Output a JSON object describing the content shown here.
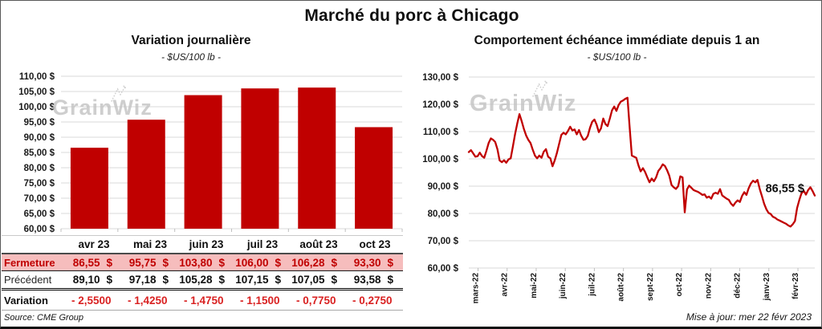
{
  "header": {
    "title": "Marché du porc à Chicago",
    "updated": "Mise à jour: mer 22 févr 2023"
  },
  "watermark": {
    "brand": "GrainWiz"
  },
  "table": {
    "columns": [
      "avr 23",
      "mai 23",
      "juin 23",
      "juil 23",
      "août 23",
      "oct 23"
    ],
    "rows": [
      {
        "id": "fermeture",
        "label": "Fermeture",
        "unit": "$",
        "values": [
          "86,55",
          "95,75",
          "103,80",
          "106,00",
          "106,28",
          "93,30"
        ]
      },
      {
        "id": "precedent",
        "label": "Précédent",
        "unit": "$",
        "values": [
          "89,10",
          "97,18",
          "105,28",
          "107,15",
          "107,05",
          "93,58"
        ]
      },
      {
        "id": "variation",
        "label": "Variation",
        "unit": "",
        "values": [
          "- 2,5500",
          "- 1,4250",
          "- 1,4750",
          "- 1,1500",
          "- 0,7750",
          "- 0,2750"
        ]
      }
    ],
    "source": "Source: CME Group"
  },
  "chart_data": [
    {
      "type": "bar",
      "title": "Variation journalière",
      "subtitle": "- $US/100 lb -",
      "categories": [
        "avr 23",
        "mai 23",
        "juin 23",
        "juil 23",
        "août 23",
        "oct 23"
      ],
      "values": [
        86.55,
        95.75,
        103.8,
        106.0,
        106.28,
        93.3
      ],
      "ylim": [
        60,
        110
      ],
      "ytick_step": 5,
      "ytick_labels": [
        "110,00 $",
        "105,00 $",
        "100,00 $",
        "95,00 $",
        "90,00 $",
        "85,00 $",
        "80,00 $",
        "75,00 $",
        "70,00 $",
        "65,00 $",
        "60,00 $"
      ],
      "bar_color": "#c00000",
      "grid": true,
      "legend": "none"
    },
    {
      "type": "line",
      "title": "Comportement échéance immédiate depuis 1 an",
      "subtitle": "- $US/100 lb -",
      "x_labels": [
        "mars-22",
        "avr-22",
        "mai-22",
        "juin-22",
        "juil-22",
        "août-22",
        "sept-22",
        "oct-22",
        "nov-22",
        "déc-22",
        "janv-23",
        "févr-23"
      ],
      "ylim": [
        60,
        130
      ],
      "ytick_step": 10,
      "ytick_labels": [
        "130,00 $",
        "120,00 $",
        "110,00 $",
        "100,00 $",
        "90,00 $",
        "80,00 $",
        "70,00 $",
        "60,00 $"
      ],
      "line_color": "#c00000",
      "last_value_label": "86,55 $",
      "last_value": 86.55,
      "grid": true,
      "legend": "none",
      "values": [
        102.5,
        103.2,
        102.0,
        100.8,
        101.0,
        102.3,
        101.0,
        100.4,
        103.0,
        105.8,
        107.5,
        107.0,
        106.2,
        103.5,
        99.4,
        98.8,
        99.5,
        98.6,
        99.8,
        100.2,
        104.5,
        109.0,
        113.0,
        116.4,
        113.8,
        111.0,
        108.6,
        107.0,
        105.8,
        103.4,
        101.2,
        100.2,
        101.2,
        100.4,
        102.6,
        103.6,
        100.8,
        100.2,
        97.3,
        99.5,
        102.2,
        105.6,
        108.8,
        109.6,
        109.0,
        110.2,
        111.8,
        110.4,
        110.8,
        109.0,
        110.6,
        108.5,
        107.0,
        107.2,
        108.4,
        111.4,
        113.6,
        114.4,
        112.6,
        109.8,
        111.2,
        114.8,
        112.8,
        112.0,
        114.8,
        117.8,
        119.2,
        117.6,
        119.8,
        121.0,
        121.4,
        122.0,
        122.4,
        111.5,
        101.2,
        100.8,
        100.4,
        97.6,
        95.4,
        96.6,
        95.2,
        93.2,
        91.4,
        92.8,
        91.8,
        93.2,
        95.6,
        96.6,
        98.0,
        97.4,
        95.8,
        93.8,
        90.4,
        89.6,
        89.0,
        90.0,
        93.6,
        93.2,
        80.4,
        88.8,
        90.2,
        89.4,
        88.6,
        88.2,
        87.9,
        87.4,
        86.8,
        87.0,
        85.8,
        86.2,
        85.4,
        87.2,
        87.6,
        87.2,
        88.9,
        86.6,
        86.0,
        85.4,
        85.0,
        83.6,
        82.8,
        84.0,
        84.8,
        84.2,
        86.4,
        87.8,
        86.8,
        89.2,
        91.0,
        92.0,
        91.4,
        92.3,
        89.0,
        86.4,
        83.6,
        81.6,
        80.2,
        79.8,
        78.8,
        78.4,
        77.8,
        77.4,
        77.0,
        76.6,
        76.2,
        75.6,
        75.2,
        76.0,
        77.2,
        82.0,
        85.0,
        87.4,
        88.3,
        86.9,
        88.6,
        89.6,
        88.2,
        86.55
      ]
    }
  ]
}
